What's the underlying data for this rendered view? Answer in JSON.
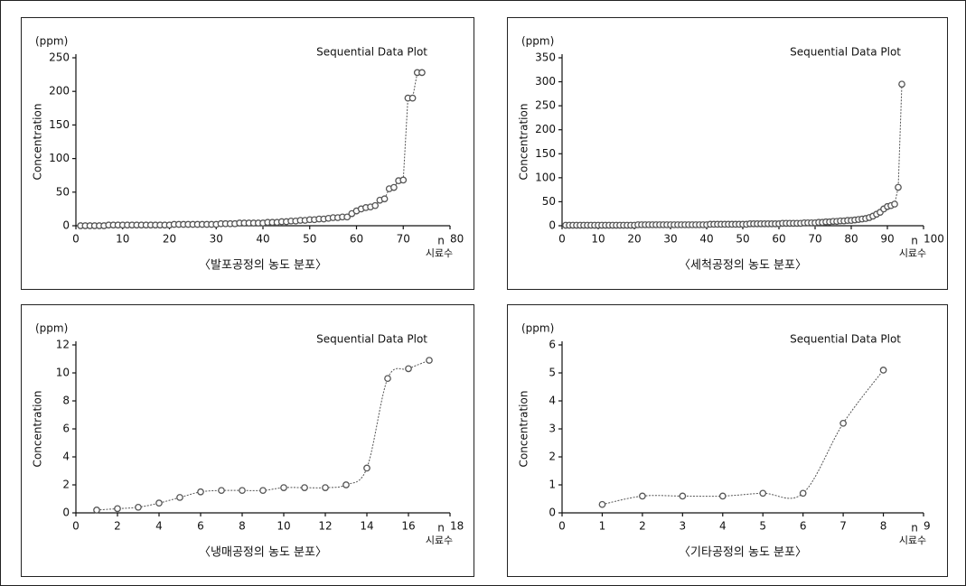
{
  "chart_data": [
    {
      "type": "line",
      "title": "〈발포공정의 농도 분포〉",
      "annotation": "Sequential Data Plot",
      "y_unit": "(ppm)",
      "y_label": "Concentration",
      "x_label": "n",
      "x_label_2": "시료수",
      "smooth": false,
      "x": [
        1,
        2,
        3,
        4,
        5,
        6,
        7,
        8,
        9,
        10,
        11,
        12,
        13,
        14,
        15,
        16,
        17,
        18,
        19,
        20,
        21,
        22,
        23,
        24,
        25,
        26,
        27,
        28,
        29,
        30,
        31,
        32,
        33,
        34,
        35,
        36,
        37,
        38,
        39,
        40,
        41,
        42,
        43,
        44,
        45,
        46,
        47,
        48,
        49,
        50,
        51,
        52,
        53,
        54,
        55,
        56,
        57,
        58,
        59,
        60,
        61,
        62,
        63,
        64,
        65,
        66,
        67,
        68,
        69,
        70,
        71,
        72,
        73,
        74
      ],
      "series": [
        {
          "color": "#555555",
          "values": [
            0,
            0,
            0,
            0,
            0,
            0,
            1,
            1,
            1,
            1,
            1,
            1,
            1,
            1,
            1,
            1,
            1,
            1,
            1,
            1,
            2,
            2,
            2,
            2,
            2,
            2,
            2,
            2,
            2,
            2,
            3,
            3,
            3,
            3,
            4,
            4,
            4,
            4,
            4,
            4,
            5,
            5,
            5,
            6,
            6,
            7,
            7,
            8,
            8,
            9,
            9,
            10,
            10,
            11,
            12,
            12,
            13,
            13,
            18,
            22,
            25,
            27,
            28,
            30,
            38,
            40,
            55,
            57,
            67,
            68,
            190,
            190,
            228,
            228
          ]
        }
      ],
      "xlim": [
        0,
        80
      ],
      "xticks": [
        0,
        10,
        20,
        30,
        40,
        50,
        60,
        70,
        80
      ],
      "ylim": [
        0,
        250
      ],
      "yticks": [
        0,
        50,
        100,
        150,
        200,
        250
      ]
    },
    {
      "type": "line",
      "title": "〈세척공정의 농도 분포〉",
      "annotation": "Sequential Data Plot",
      "y_unit": "(ppm)",
      "y_label": "Concentration",
      "x_label": "n",
      "x_label_2": "시료수",
      "smooth": false,
      "x": [
        1,
        2,
        3,
        4,
        5,
        6,
        7,
        8,
        9,
        10,
        11,
        12,
        13,
        14,
        15,
        16,
        17,
        18,
        19,
        20,
        21,
        22,
        23,
        24,
        25,
        26,
        27,
        28,
        29,
        30,
        31,
        32,
        33,
        34,
        35,
        36,
        37,
        38,
        39,
        40,
        41,
        42,
        43,
        44,
        45,
        46,
        47,
        48,
        49,
        50,
        51,
        52,
        53,
        54,
        55,
        56,
        57,
        58,
        59,
        60,
        61,
        62,
        63,
        64,
        65,
        66,
        67,
        68,
        69,
        70,
        71,
        72,
        73,
        74,
        75,
        76,
        77,
        78,
        79,
        80,
        81,
        82,
        83,
        84,
        85,
        86,
        87,
        88,
        89,
        90,
        91,
        92,
        93,
        94
      ],
      "series": [
        {
          "color": "#555555",
          "values": [
            1,
            1,
            1,
            1,
            1,
            1,
            1,
            1,
            1,
            1,
            1,
            1,
            1,
            1,
            1,
            1,
            1,
            1,
            1,
            1,
            2,
            2,
            2,
            2,
            2,
            2,
            2,
            2,
            2,
            2,
            2,
            2,
            2,
            2,
            2,
            2,
            2,
            2,
            2,
            2,
            3,
            3,
            3,
            3,
            3,
            3,
            3,
            3,
            3,
            3,
            3,
            4,
            4,
            4,
            4,
            4,
            4,
            4,
            4,
            4,
            5,
            5,
            5,
            5,
            5,
            5,
            6,
            6,
            6,
            6,
            7,
            7,
            8,
            8,
            9,
            9,
            10,
            10,
            11,
            11,
            12,
            13,
            14,
            15,
            17,
            20,
            24,
            28,
            35,
            40,
            42,
            45,
            80,
            295
          ]
        }
      ],
      "xlim": [
        0,
        100
      ],
      "xticks": [
        0,
        10,
        20,
        30,
        40,
        50,
        60,
        70,
        80,
        90,
        100
      ],
      "ylim": [
        0,
        350
      ],
      "yticks": [
        0,
        50,
        100,
        150,
        200,
        250,
        300,
        350
      ]
    },
    {
      "type": "line",
      "title": "〈냉매공정의 농도 분포〉",
      "annotation": "Sequential Data Plot",
      "y_unit": "(ppm)",
      "y_label": "Concentration",
      "x_label": "n",
      "x_label_2": "시료수",
      "smooth": true,
      "x": [
        1,
        2,
        3,
        4,
        5,
        6,
        7,
        8,
        9,
        10,
        11,
        12,
        13,
        14,
        15,
        16,
        17
      ],
      "series": [
        {
          "color": "#555555",
          "values": [
            0.2,
            0.3,
            0.4,
            0.7,
            1.1,
            1.5,
            1.6,
            1.6,
            1.6,
            1.8,
            1.8,
            1.8,
            2.0,
            3.2,
            9.6,
            10.3,
            10.9
          ]
        }
      ],
      "xlim": [
        0,
        18
      ],
      "xticks": [
        0,
        2,
        4,
        6,
        8,
        10,
        12,
        14,
        16,
        18
      ],
      "ylim": [
        0,
        12
      ],
      "yticks": [
        0,
        2,
        4,
        6,
        8,
        10,
        12
      ]
    },
    {
      "type": "line",
      "title": "〈기타공정의 농도 분포〉",
      "annotation": "Sequential Data Plot",
      "y_unit": "(ppm)",
      "y_label": "Concentration",
      "x_label": "n",
      "x_label_2": "시료수",
      "smooth": true,
      "x": [
        1,
        2,
        3,
        4,
        5,
        6,
        7,
        8
      ],
      "series": [
        {
          "color": "#555555",
          "values": [
            0.3,
            0.6,
            0.6,
            0.6,
            0.7,
            0.7,
            3.2,
            5.1
          ]
        }
      ],
      "xlim": [
        0,
        9
      ],
      "xticks": [
        0,
        1,
        2,
        3,
        4,
        5,
        6,
        7,
        8,
        9
      ],
      "ylim": [
        0,
        6
      ],
      "yticks": [
        0,
        1,
        2,
        3,
        4,
        5,
        6
      ]
    }
  ]
}
